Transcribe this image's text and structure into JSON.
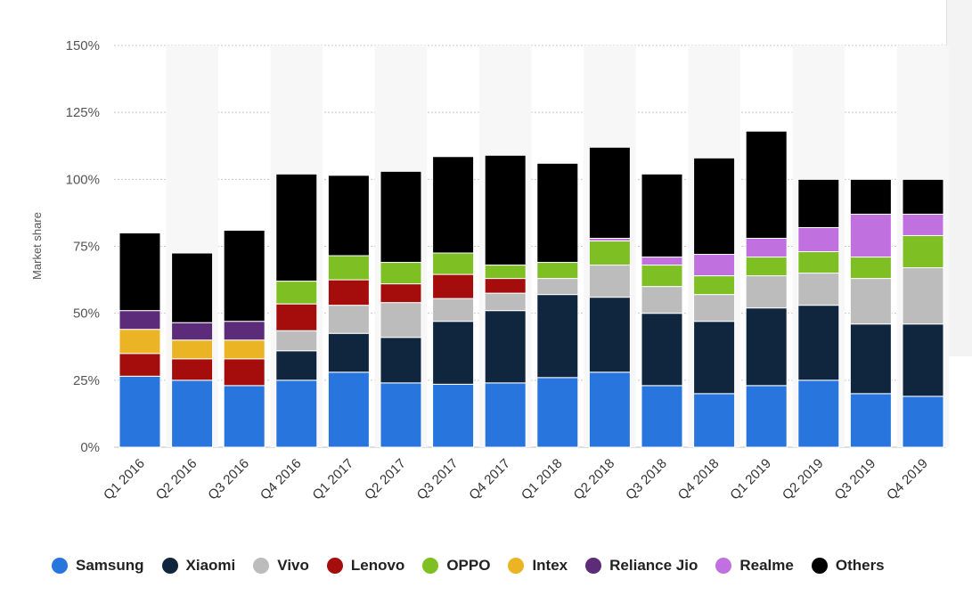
{
  "chart_data": {
    "type": "bar",
    "stacked": true,
    "title": "",
    "xlabel": "",
    "ylabel": "Market share",
    "ylim": [
      0,
      150
    ],
    "ytick_values": [
      0,
      25,
      50,
      75,
      100,
      125,
      150
    ],
    "ytick_labels": [
      "0%",
      "25%",
      "50%",
      "75%",
      "100%",
      "125%",
      "150%"
    ],
    "grid": true,
    "legend_position": "bottom",
    "categories": [
      "Q1 2016",
      "Q2 2016",
      "Q3 2016",
      "Q4 2016",
      "Q1 2017",
      "Q2 2017",
      "Q3 2017",
      "Q4 2017",
      "Q1 2018",
      "Q2 2018",
      "Q3 2018",
      "Q4 2018",
      "Q1 2019",
      "Q2 2019",
      "Q3 2019",
      "Q4 2019"
    ],
    "series": [
      {
        "name": "Samsung",
        "color": "#2876dd",
        "values": [
          26.5,
          25,
          23,
          25,
          28,
          24,
          23.5,
          24,
          26,
          28,
          23,
          20,
          23,
          25,
          20,
          19
        ]
      },
      {
        "name": "Xiaomi",
        "color": "#10263f",
        "values": [
          0,
          0,
          0,
          11,
          14.5,
          17,
          23.5,
          27,
          31,
          28,
          27,
          27,
          29,
          28,
          26,
          27
        ]
      },
      {
        "name": "Vivo",
        "color": "#bcbcbc",
        "values": [
          0,
          0,
          0,
          7.5,
          10.5,
          13,
          8.5,
          6.5,
          6,
          12,
          10,
          10,
          12,
          12,
          17,
          21
        ]
      },
      {
        "name": "Lenovo",
        "color": "#a50d0d",
        "values": [
          8.5,
          8,
          10,
          10,
          9.5,
          7,
          9,
          5.5,
          0,
          0,
          0,
          0,
          0,
          0,
          0,
          0
        ]
      },
      {
        "name": "OPPO",
        "color": "#7ebf24",
        "values": [
          0,
          0,
          0,
          8.5,
          9,
          8,
          8,
          5,
          6,
          9,
          8,
          7,
          7,
          8,
          8,
          12
        ]
      },
      {
        "name": "Intex",
        "color": "#ebb424",
        "values": [
          9,
          7,
          7,
          0,
          0,
          0,
          0,
          0,
          0,
          0,
          0,
          0,
          0,
          0,
          0,
          0
        ]
      },
      {
        "name": "Reliance Jio",
        "color": "#5c2b7a",
        "values": [
          7,
          6.5,
          7,
          0,
          0,
          0,
          0,
          0,
          0,
          0,
          0,
          0,
          0,
          0,
          0,
          0
        ]
      },
      {
        "name": "Realme",
        "color": "#c171df",
        "values": [
          0,
          0,
          0,
          0,
          0,
          0,
          0,
          0,
          0,
          1,
          3,
          8,
          7,
          9,
          16,
          8
        ]
      },
      {
        "name": "Others",
        "color": "#000000",
        "values": [
          29,
          26,
          34,
          40,
          30,
          34,
          36,
          41,
          37,
          34,
          31,
          36,
          40,
          18,
          13,
          13
        ]
      }
    ]
  }
}
